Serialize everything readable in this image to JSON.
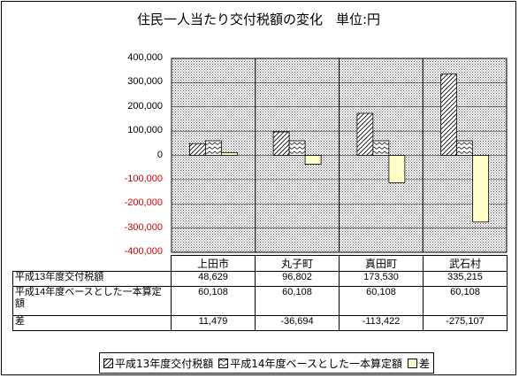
{
  "chart_data": {
    "type": "bar",
    "title": "住民一人当たり交付税額の変化　単位:円",
    "categories": [
      "上田市",
      "丸子町",
      "真田町",
      "武石村"
    ],
    "series": [
      {
        "name": "平成13年度交付税額",
        "values": [
          48629,
          96802,
          173530,
          335215
        ],
        "pattern": "diagonal"
      },
      {
        "name": "平成14年度ベースとした一本算定額",
        "values": [
          60108,
          60108,
          60108,
          60108
        ],
        "pattern": "zigzag"
      },
      {
        "name": "差",
        "values": [
          11479,
          -36694,
          -113422,
          -275107
        ],
        "pattern": "solid"
      }
    ],
    "ylim": [
      -400000,
      400000
    ],
    "yticks": [
      "400,000",
      "300,000",
      "200,000",
      "100,000",
      "0",
      "-100,000",
      "-200,000",
      "-300,000",
      "-400,000"
    ],
    "grid": true,
    "legend_position": "bottom",
    "colors": {
      "diff_fill": "#ffffcc",
      "negative_label": "#e00000",
      "plot_background": "#d8d8d8"
    }
  },
  "table": {
    "row_labels": [
      "平成13年度交付税額",
      "平成14年度ベースとした一本算定額",
      "差"
    ],
    "rows": [
      [
        "48,629",
        "96,802",
        "173,530",
        "335,215"
      ],
      [
        "60,108",
        "60,108",
        "60,108",
        "60,108"
      ],
      [
        "11,479",
        "-36,694",
        "-113,422",
        "-275,107"
      ]
    ]
  }
}
